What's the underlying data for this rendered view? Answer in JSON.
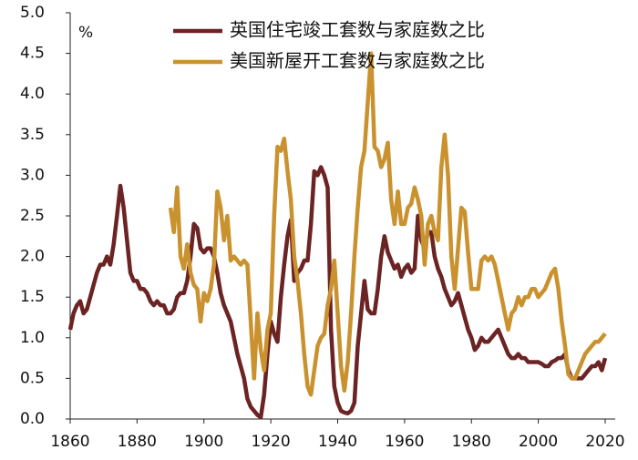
{
  "chart_data": {
    "type": "line",
    "unit_label": "%",
    "x": [
      1860,
      1861,
      1862,
      1863,
      1864,
      1865,
      1866,
      1867,
      1868,
      1869,
      1870,
      1871,
      1872,
      1873,
      1874,
      1875,
      1876,
      1877,
      1878,
      1879,
      1880,
      1881,
      1882,
      1883,
      1884,
      1885,
      1886,
      1887,
      1888,
      1889,
      1890,
      1891,
      1892,
      1893,
      1894,
      1895,
      1896,
      1897,
      1898,
      1899,
      1900,
      1901,
      1902,
      1903,
      1904,
      1905,
      1906,
      1907,
      1908,
      1909,
      1910,
      1911,
      1912,
      1913,
      1914,
      1915,
      1916,
      1917,
      1918,
      1919,
      1920,
      1921,
      1922,
      1923,
      1924,
      1925,
      1926,
      1927,
      1928,
      1929,
      1930,
      1931,
      1932,
      1933,
      1934,
      1935,
      1936,
      1937,
      1938,
      1939,
      1940,
      1941,
      1942,
      1943,
      1944,
      1945,
      1946,
      1947,
      1948,
      1949,
      1950,
      1951,
      1952,
      1953,
      1954,
      1955,
      1956,
      1957,
      1958,
      1959,
      1960,
      1961,
      1962,
      1963,
      1964,
      1965,
      1966,
      1967,
      1968,
      1969,
      1970,
      1971,
      1972,
      1973,
      1974,
      1975,
      1976,
      1977,
      1978,
      1979,
      1980,
      1981,
      1982,
      1983,
      1984,
      1985,
      1986,
      1987,
      1988,
      1989,
      1990,
      1991,
      1992,
      1993,
      1994,
      1995,
      1996,
      1997,
      1998,
      1999,
      2000,
      2001,
      2002,
      2003,
      2004,
      2005,
      2006,
      2007,
      2008,
      2009,
      2010,
      2011,
      2012,
      2013,
      2014,
      2015,
      2016,
      2017,
      2018,
      2019,
      2020
    ],
    "series": [
      {
        "name": "英国住宅竣工套数与家庭数之比",
        "color": "#6b2323",
        "values": [
          1.1,
          1.3,
          1.4,
          1.45,
          1.3,
          1.35,
          1.5,
          1.65,
          1.8,
          1.9,
          1.9,
          2.0,
          1.9,
          2.15,
          2.5,
          2.87,
          2.6,
          2.2,
          1.8,
          1.7,
          1.7,
          1.6,
          1.6,
          1.55,
          1.45,
          1.4,
          1.45,
          1.4,
          1.4,
          1.3,
          1.3,
          1.35,
          1.5,
          1.55,
          1.55,
          1.7,
          2.0,
          2.4,
          2.35,
          2.1,
          2.05,
          2.1,
          2.1,
          2.0,
          1.8,
          1.55,
          1.4,
          1.3,
          1.2,
          1.0,
          0.8,
          0.65,
          0.5,
          0.25,
          0.15,
          0.1,
          0.05,
          0.02,
          0.3,
          0.8,
          1.2,
          1.05,
          0.95,
          1.5,
          1.9,
          2.25,
          2.45,
          1.7,
          1.8,
          1.85,
          1.95,
          1.95,
          2.4,
          3.05,
          3.0,
          3.1,
          3.0,
          2.85,
          1.1,
          0.4,
          0.2,
          0.1,
          0.08,
          0.07,
          0.1,
          0.2,
          0.9,
          1.3,
          1.7,
          1.35,
          1.3,
          1.3,
          1.6,
          2.0,
          2.25,
          2.05,
          1.95,
          1.85,
          1.9,
          1.75,
          1.85,
          1.9,
          1.8,
          1.85,
          2.5,
          2.2,
          2.1,
          2.3,
          2.3,
          2.0,
          1.85,
          1.75,
          1.6,
          1.5,
          1.4,
          1.45,
          1.55,
          1.4,
          1.25,
          1.1,
          1.0,
          0.85,
          0.9,
          1.0,
          0.95,
          0.95,
          1.0,
          1.05,
          1.1,
          1.0,
          0.9,
          0.8,
          0.75,
          0.75,
          0.8,
          0.75,
          0.75,
          0.7,
          0.7,
          0.7,
          0.7,
          0.68,
          0.65,
          0.65,
          0.7,
          0.72,
          0.75,
          0.75,
          0.8,
          0.6,
          0.5,
          0.5,
          0.5,
          0.5,
          0.55,
          0.6,
          0.65,
          0.65,
          0.7,
          0.6,
          0.75
        ]
      },
      {
        "name": "美国新屋开工套数与家庭数之比",
        "color": "#c9922e",
        "values": [
          null,
          null,
          null,
          null,
          null,
          null,
          null,
          null,
          null,
          null,
          null,
          null,
          null,
          null,
          null,
          null,
          null,
          null,
          null,
          null,
          null,
          null,
          null,
          null,
          null,
          null,
          null,
          null,
          null,
          null,
          2.6,
          2.3,
          2.85,
          2.0,
          1.85,
          2.15,
          1.8,
          1.65,
          1.6,
          1.2,
          1.55,
          1.45,
          1.6,
          1.9,
          2.8,
          2.6,
          2.2,
          2.5,
          1.95,
          2.0,
          1.95,
          1.9,
          1.95,
          1.9,
          1.2,
          0.5,
          1.3,
          0.85,
          0.6,
          1.1,
          1.3,
          2.5,
          3.35,
          3.3,
          3.45,
          3.05,
          2.7,
          2.0,
          1.7,
          1.3,
          0.8,
          0.4,
          0.3,
          0.6,
          0.9,
          1.0,
          1.05,
          1.4,
          1.6,
          1.95,
          1.3,
          0.65,
          0.35,
          0.7,
          1.3,
          2.0,
          2.6,
          3.1,
          3.3,
          3.9,
          4.5,
          3.35,
          3.3,
          3.1,
          3.2,
          3.4,
          2.7,
          2.4,
          2.8,
          2.4,
          2.4,
          2.6,
          2.65,
          2.85,
          2.7,
          2.5,
          1.9,
          2.4,
          2.5,
          2.3,
          2.2,
          3.1,
          3.5,
          3.0,
          2.0,
          1.6,
          2.1,
          2.6,
          2.55,
          2.05,
          1.6,
          1.6,
          1.6,
          1.95,
          2.0,
          1.95,
          2.0,
          1.9,
          1.7,
          1.5,
          1.3,
          1.1,
          1.3,
          1.35,
          1.5,
          1.4,
          1.5,
          1.5,
          1.6,
          1.6,
          1.5,
          1.55,
          1.6,
          1.7,
          1.8,
          1.85,
          1.6,
          1.2,
          0.9,
          0.55,
          0.5,
          0.5,
          0.6,
          0.7,
          0.8,
          0.85,
          0.9,
          0.95,
          0.95,
          1.0,
          1.05
        ]
      }
    ],
    "xlim": [
      1860,
      2023
    ],
    "xticks": [
      1860,
      1880,
      1900,
      1920,
      1940,
      1960,
      1980,
      2000,
      2020
    ],
    "ylim": [
      0,
      5
    ],
    "yticks": [
      {
        "value": 0,
        "label": "0.0"
      },
      0.5,
      {
        "value": 1,
        "label": "1.0"
      },
      1.5,
      {
        "value": 2,
        "label": "2.0"
      },
      2.5,
      {
        "value": 3,
        "label": "3.0"
      },
      3.5,
      {
        "value": 4,
        "label": "4.0"
      },
      4.5,
      {
        "value": 5,
        "label": "5.0"
      }
    ],
    "grid": false,
    "legend": "top"
  }
}
